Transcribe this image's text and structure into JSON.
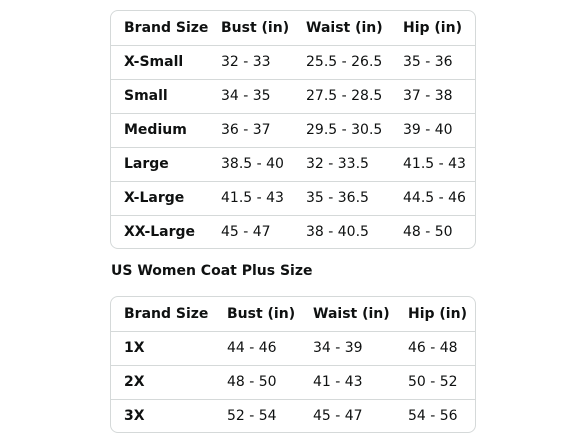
{
  "regular_table": {
    "headers": [
      "Brand Size",
      "Bust (in)",
      "Waist (in)",
      "Hip (in)"
    ],
    "rows": [
      [
        "X-Small",
        "32 - 33",
        "25.5 - 26.5",
        "35 - 36"
      ],
      [
        "Small",
        "34 - 35",
        "27.5 - 28.5",
        "37 - 38"
      ],
      [
        "Medium",
        "36 - 37",
        "29.5 - 30.5",
        "39 - 40"
      ],
      [
        "Large",
        "38.5 - 40",
        "32 - 33.5",
        "41.5 - 43"
      ],
      [
        "X-Large",
        "41.5 - 43",
        "35 - 36.5",
        "44.5 - 46"
      ],
      [
        "XX-Large",
        "45 - 47",
        "38 - 40.5",
        "48 - 50"
      ]
    ]
  },
  "plus_section": {
    "title": "US Women Coat Plus Size"
  },
  "plus_table": {
    "headers": [
      "Brand Size",
      "Bust (in)",
      "Waist (in)",
      "Hip (in)"
    ],
    "rows": [
      [
        "1X",
        "44 - 46",
        "34 - 39",
        "46 - 48"
      ],
      [
        "2X",
        "48 - 50",
        "41 - 43",
        "50 - 52"
      ],
      [
        "3X",
        "52 - 54",
        "45 - 47",
        "54 - 56"
      ]
    ]
  }
}
